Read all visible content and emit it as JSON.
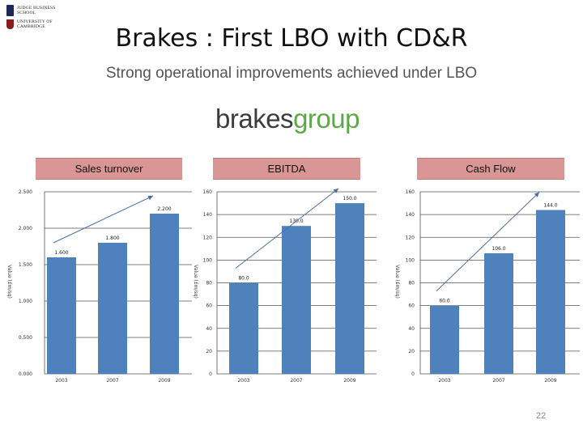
{
  "logos": {
    "jbs_text": "JUDGE BUSINESS\nSCHOOL",
    "cambridge_text": "UNIVERSITY OF\nCAMBRIDGE"
  },
  "title": "Brakes : First LBO with CD&R",
  "subtitle": "Strong operational improvements achieved under LBO",
  "brand": {
    "part1": "brakes",
    "part2": "group"
  },
  "colors": {
    "bar": "#4f81bd",
    "header": "#d99694",
    "arrow": "#4a6fa5",
    "brand_green": "#5ea84a"
  },
  "chart_data": [
    {
      "type": "bar",
      "title": "Sales turnover",
      "categories": [
        "2003",
        "2007",
        "2009"
      ],
      "values": [
        1.6,
        1.8,
        2.2
      ],
      "data_labels": [
        "1.600",
        "1.800",
        "2.200"
      ],
      "ylabel": "Value (£m/sq)",
      "ylim": [
        0,
        2.5
      ],
      "yticks": [
        0,
        0.5,
        1.0,
        1.5,
        2.0,
        2.5
      ],
      "ytick_labels": [
        "0.000",
        "0.500",
        "1.000",
        "1.500",
        "2.000",
        "2.500"
      ],
      "grid": true,
      "trend_arrow": true
    },
    {
      "type": "bar",
      "title": "EBITDA",
      "categories": [
        "2003",
        "2007",
        "2009"
      ],
      "values": [
        80,
        130,
        150
      ],
      "data_labels": [
        "80.0",
        "130.0",
        "150.0"
      ],
      "ylabel": "Value (£m/sq)",
      "ylim": [
        0,
        160
      ],
      "yticks": [
        0,
        20,
        40,
        60,
        80,
        100,
        120,
        140,
        160
      ],
      "ytick_labels": [
        "0",
        "20",
        "40",
        "60",
        "80",
        "100",
        "120",
        "140",
        "160"
      ],
      "grid": true,
      "trend_arrow": true
    },
    {
      "type": "bar",
      "title": "Cash Flow",
      "categories": [
        "2003",
        "2007",
        "2009"
      ],
      "values": [
        60,
        106,
        144
      ],
      "data_labels": [
        "60.0",
        "106.0",
        "144.0"
      ],
      "ylabel": "Value (£m/sq)",
      "ylim": [
        0,
        160
      ],
      "yticks": [
        0,
        20,
        40,
        60,
        80,
        100,
        120,
        140,
        160
      ],
      "ytick_labels": [
        "0",
        "20",
        "40",
        "60",
        "80",
        "100",
        "120",
        "140",
        "160"
      ],
      "grid": true,
      "trend_arrow": true
    }
  ],
  "page_number": "22"
}
